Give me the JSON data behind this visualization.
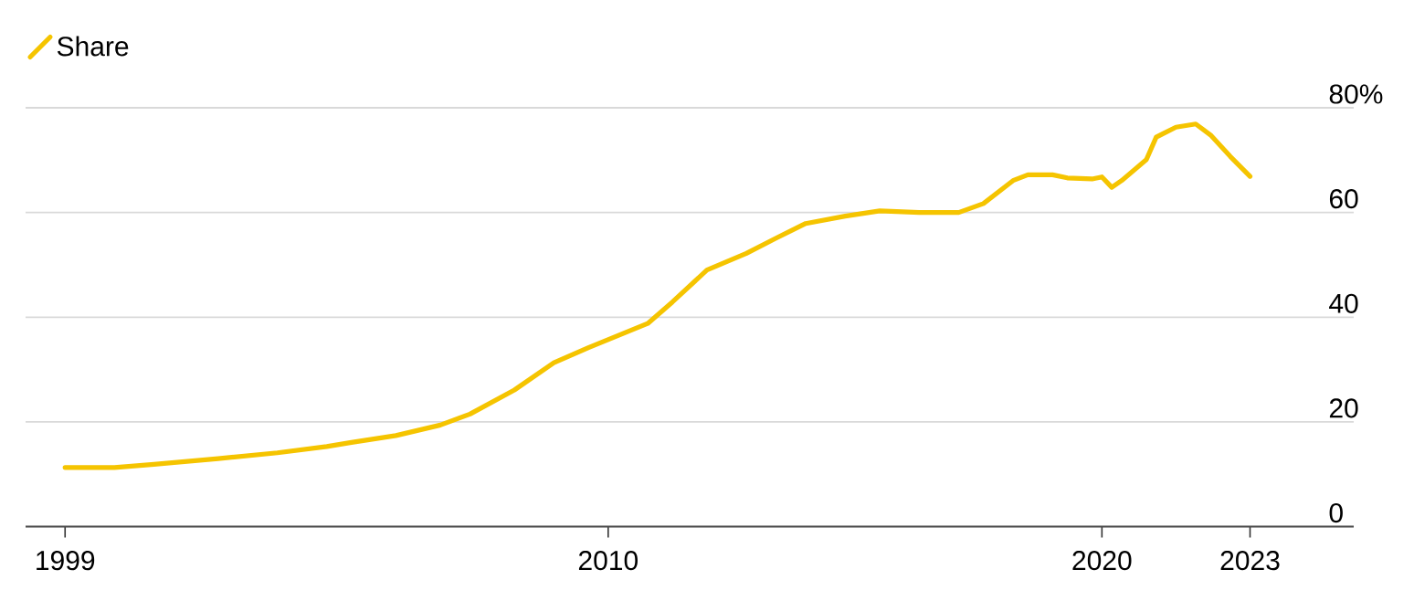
{
  "chart_data": {
    "type": "line",
    "legend": "top left",
    "grid": "y",
    "xlim": [
      1998.2,
      2025.1
    ],
    "xticks": [
      1999,
      2010,
      2020,
      2023
    ],
    "ylim": [
      0,
      80
    ],
    "yticks": [
      0,
      20,
      40,
      60,
      {
        "value": 80,
        "label": "80%"
      }
    ],
    "series": [
      {
        "name": "Share",
        "color": "#f5c400",
        "x": [
          1999.0,
          2000.0,
          2000.8,
          2002.1,
          2003.3,
          2004.3,
          2004.8,
          2005.7,
          2006.6,
          2007.2,
          2008.1,
          2008.9,
          2009.6,
          2010.8,
          2011.3,
          2012.0,
          2012.8,
          2013.4,
          2014.0,
          2014.8,
          2015.5,
          2016.3,
          2017.1,
          2017.6,
          2018.2,
          2018.5,
          2019.0,
          2019.3,
          2019.8,
          2020.0,
          2020.2,
          2020.4,
          2020.9,
          2021.1,
          2021.5,
          2021.9,
          2022.2,
          2022.6,
          2023.0
        ],
        "values": [
          11.3,
          11.3,
          11.9,
          13.0,
          14.1,
          15.3,
          16.1,
          17.4,
          19.4,
          21.5,
          26.1,
          31.3,
          34.2,
          38.8,
          42.9,
          49.0,
          52.2,
          55.1,
          57.9,
          59.3,
          60.3,
          60.0,
          60.0,
          61.7,
          66.1,
          67.2,
          67.2,
          66.6,
          66.4,
          66.8,
          64.8,
          66.1,
          70.1,
          74.4,
          76.3,
          76.9,
          74.8,
          70.7,
          66.9
        ]
      }
    ]
  }
}
